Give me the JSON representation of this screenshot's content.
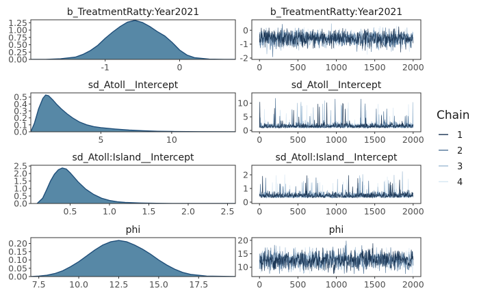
{
  "chart_data": [
    {
      "type": "area",
      "title": "b_TreatmentRatty:Year2021",
      "xlim": [
        -2.0,
        0.75
      ],
      "ylim": [
        0,
        1.35
      ],
      "x_ticks": [
        -1,
        0
      ],
      "x_tick_labels": [
        "-1",
        "0"
      ],
      "y_ticks": [
        0,
        0.25,
        0.5,
        0.75,
        1.0,
        1.25
      ],
      "y_tick_labels": [
        "0.00",
        "0.25",
        "0.50",
        "0.75",
        "1.00",
        "1.25"
      ],
      "density": {
        "x": [
          -2.0,
          -1.8,
          -1.6,
          -1.4,
          -1.3,
          -1.2,
          -1.1,
          -1.0,
          -0.9,
          -0.8,
          -0.7,
          -0.6,
          -0.5,
          -0.4,
          -0.3,
          -0.2,
          -0.1,
          0.0,
          0.1,
          0.2,
          0.4,
          0.6,
          0.75
        ],
        "y": [
          0.0,
          0.003,
          0.02,
          0.08,
          0.17,
          0.3,
          0.48,
          0.72,
          0.93,
          1.12,
          1.27,
          1.33,
          1.26,
          1.12,
          0.95,
          0.8,
          0.58,
          0.32,
          0.15,
          0.06,
          0.01,
          0.002,
          0.0
        ]
      },
      "fill_color": "#5788a6",
      "line_color": "#1f4e79"
    },
    {
      "type": "line",
      "title": "b_TreatmentRatty:Year2021",
      "xlim": [
        -100,
        2100
      ],
      "ylim": [
        -2.1,
        0.75
      ],
      "x_ticks": [
        0,
        500,
        1000,
        1500,
        2000
      ],
      "x_tick_labels": [
        "0",
        "500",
        "1000",
        "1500",
        "2000"
      ],
      "y_ticks": [
        -2,
        -1,
        0
      ],
      "y_tick_labels": [
        "-2",
        "-1",
        "0"
      ],
      "trace": {
        "iterations": 2000,
        "mean": -0.6,
        "sd": 0.33,
        "min": -2.0,
        "max": 0.6
      }
    },
    {
      "type": "area",
      "title": "sd_Atoll__Intercept",
      "xlim": [
        0.05,
        14.5
      ],
      "ylim": [
        0,
        0.56
      ],
      "x_ticks": [
        5,
        10
      ],
      "x_tick_labels": [
        "5",
        "10"
      ],
      "y_ticks": [
        0,
        0.1,
        0.2,
        0.3,
        0.4,
        0.5
      ],
      "y_tick_labels": [
        "0.0",
        "0.1",
        "0.2",
        "0.3",
        "0.4",
        "0.5"
      ],
      "density": {
        "x": [
          0.05,
          0.3,
          0.6,
          0.9,
          1.1,
          1.3,
          1.6,
          1.9,
          2.2,
          2.6,
          3.0,
          3.5,
          4.0,
          4.5,
          5.0,
          5.5,
          6.0,
          7.0,
          8.0,
          9.0,
          10.0,
          12.0,
          14.5
        ],
        "y": [
          0.0,
          0.12,
          0.33,
          0.48,
          0.53,
          0.52,
          0.46,
          0.39,
          0.33,
          0.26,
          0.2,
          0.14,
          0.1,
          0.075,
          0.06,
          0.05,
          0.04,
          0.025,
          0.015,
          0.008,
          0.005,
          0.002,
          0.0
        ]
      },
      "fill_color": "#5788a6",
      "line_color": "#1f4e79"
    },
    {
      "type": "line",
      "title": "sd_Atoll__Intercept",
      "xlim": [
        -100,
        2100
      ],
      "ylim": [
        -0.5,
        13.8
      ],
      "x_ticks": [
        0,
        500,
        1000,
        1500,
        2000
      ],
      "x_tick_labels": [
        "0",
        "500",
        "1000",
        "1500",
        "2000"
      ],
      "y_ticks": [
        0,
        5,
        10
      ],
      "y_tick_labels": [
        "0",
        "5",
        "10"
      ],
      "trace": {
        "iterations": 2000,
        "mean": 1.6,
        "sd": 0.9,
        "min": 0.1,
        "max": 13.5
      }
    },
    {
      "type": "area",
      "title": "sd_Atoll:Island__Intercept",
      "xlim": [
        0.0,
        2.6
      ],
      "ylim": [
        0,
        2.55
      ],
      "x_ticks": [
        0.5,
        1.0,
        1.5,
        2.0,
        2.5
      ],
      "x_tick_labels": [
        "0.5",
        "1.0",
        "1.5",
        "2.0",
        "2.5"
      ],
      "y_ticks": [
        0,
        0.5,
        1.0,
        1.5,
        2.0,
        2.5
      ],
      "y_tick_labels": [
        "0.0",
        "0.5",
        "1.0",
        "1.5",
        "2.0",
        "2.5"
      ],
      "density": {
        "x": [
          0.08,
          0.15,
          0.2,
          0.25,
          0.3,
          0.35,
          0.4,
          0.45,
          0.5,
          0.55,
          0.6,
          0.7,
          0.8,
          0.9,
          1.0,
          1.1,
          1.2,
          1.4,
          1.6,
          1.8,
          2.0,
          2.3,
          2.6
        ],
        "y": [
          0.0,
          0.35,
          0.9,
          1.5,
          1.95,
          2.25,
          2.37,
          2.3,
          2.05,
          1.75,
          1.45,
          0.95,
          0.6,
          0.35,
          0.2,
          0.12,
          0.07,
          0.03,
          0.012,
          0.005,
          0.002,
          0.001,
          0.0
        ]
      },
      "fill_color": "#5788a6",
      "line_color": "#1f4e79"
    },
    {
      "type": "line",
      "title": "sd_Atoll:Island__Intercept",
      "xlim": [
        -100,
        2100
      ],
      "ylim": [
        -0.1,
        2.7
      ],
      "x_ticks": [
        0,
        500,
        1000,
        1500,
        2000
      ],
      "x_tick_labels": [
        "0",
        "500",
        "1000",
        "1500",
        "2000"
      ],
      "y_ticks": [
        0,
        1,
        2
      ],
      "y_tick_labels": [
        "0",
        "1",
        "2"
      ],
      "trace": {
        "iterations": 2000,
        "mean": 0.5,
        "sd": 0.22,
        "min": 0.1,
        "max": 2.5
      }
    },
    {
      "type": "area",
      "title": "phi",
      "xlim": [
        7.0,
        19.8
      ],
      "ylim": [
        0,
        0.235
      ],
      "x_ticks": [
        7.5,
        10.0,
        12.5,
        15.0,
        17.5
      ],
      "x_tick_labels": [
        "7.5",
        "10.0",
        "12.5",
        "15.0",
        "17.5"
      ],
      "y_ticks": [
        0,
        0.05,
        0.1,
        0.15,
        0.2
      ],
      "y_tick_labels": [
        "0.00",
        "0.05",
        "0.10",
        "0.15",
        "0.20"
      ],
      "density": {
        "x": [
          7.0,
          7.5,
          8.0,
          8.5,
          9.0,
          9.5,
          10.0,
          10.5,
          11.0,
          11.5,
          12.0,
          12.5,
          13.0,
          13.5,
          14.0,
          14.5,
          15.0,
          15.5,
          16.0,
          16.5,
          17.0,
          18.0,
          19.8
        ],
        "y": [
          0.0,
          0.003,
          0.008,
          0.018,
          0.035,
          0.06,
          0.09,
          0.125,
          0.16,
          0.19,
          0.21,
          0.218,
          0.21,
          0.19,
          0.165,
          0.135,
          0.1,
          0.07,
          0.045,
          0.025,
          0.013,
          0.003,
          0.0
        ]
      },
      "fill_color": "#5788a6",
      "line_color": "#1f4e79"
    },
    {
      "type": "line",
      "title": "phi",
      "xlim": [
        -100,
        2100
      ],
      "ylim": [
        6.5,
        21.0
      ],
      "x_ticks": [
        0,
        500,
        1000,
        1500,
        2000
      ],
      "x_tick_labels": [
        "0",
        "500",
        "1000",
        "1500",
        "2000"
      ],
      "y_ticks": [
        10,
        15,
        20
      ],
      "y_tick_labels": [
        "10",
        "15",
        "20"
      ],
      "trace": {
        "iterations": 2000,
        "mean": 12.6,
        "sd": 1.9,
        "min": 7.5,
        "max": 20.0
      }
    }
  ],
  "legend": {
    "title": "Chain",
    "items": [
      {
        "label": "1",
        "color": "#16304f"
      },
      {
        "label": "2",
        "color": "#4f7397"
      },
      {
        "label": "3",
        "color": "#9db9d3"
      },
      {
        "label": "4",
        "color": "#d6e6f2"
      }
    ]
  }
}
